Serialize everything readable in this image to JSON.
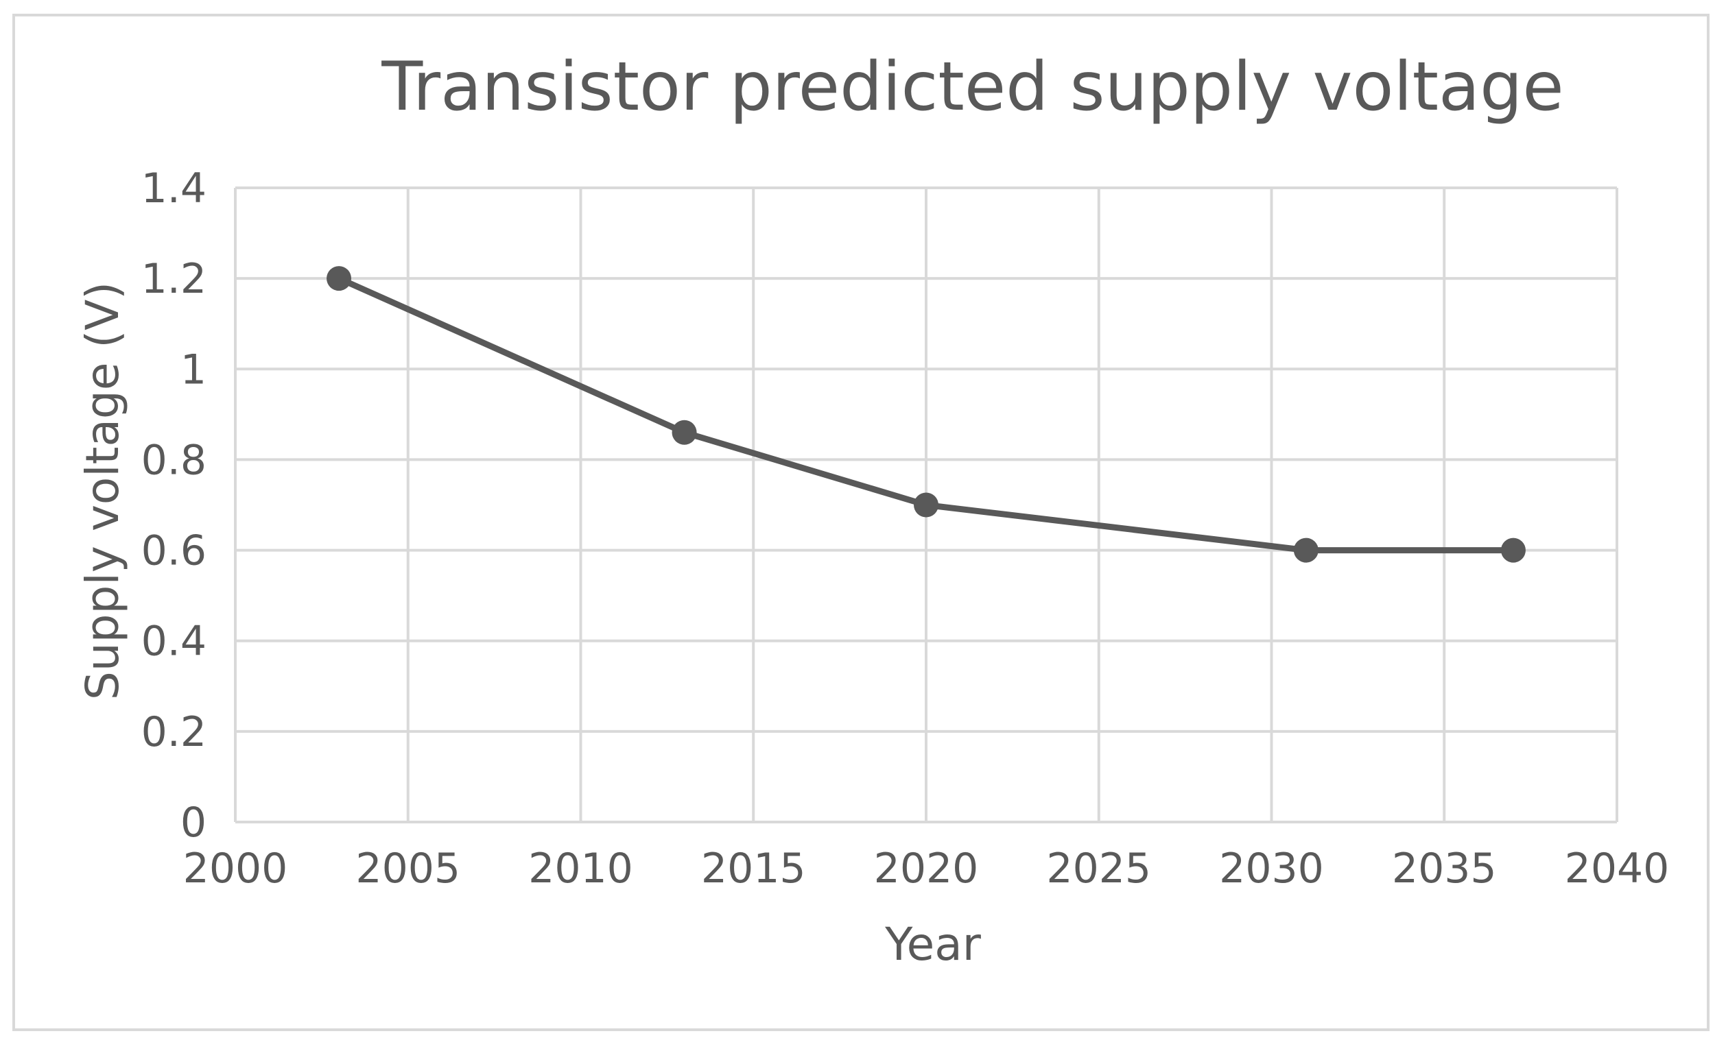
{
  "chart_data": {
    "type": "scatter",
    "title": "Transistor predicted supply voltage",
    "xlabel": "Year",
    "ylabel": "Supply voltage (V)",
    "xlim": [
      2000,
      2040
    ],
    "ylim": [
      0,
      1.4
    ],
    "x_ticks": [
      "2000",
      "2005",
      "2010",
      "2015",
      "2020",
      "2025",
      "2030",
      "2035",
      "2040"
    ],
    "y_ticks": [
      "0",
      "0.2",
      "0.4",
      "0.6",
      "0.8",
      "1",
      "1.2",
      "1.4"
    ],
    "grid": true,
    "legend": "none",
    "series": [
      {
        "x": [
          2003,
          2013,
          2020,
          2031,
          2037
        ],
        "y": [
          1.2,
          0.86,
          0.7,
          0.6,
          0.6
        ],
        "color": "#595959",
        "markers": true,
        "lines": true
      }
    ]
  }
}
